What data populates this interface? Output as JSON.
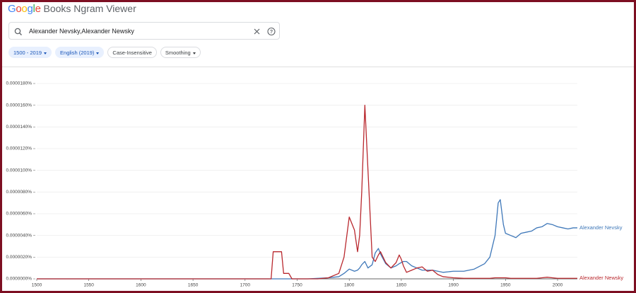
{
  "header": {
    "logo": "Google",
    "title": "Books Ngram Viewer"
  },
  "search": {
    "query": "Alexander Nevsky,Alexander Newsky"
  },
  "chips": [
    "1500 - 2019",
    "English (2019)",
    "Case-Insensitive",
    "Smoothing"
  ],
  "chart_data": {
    "type": "line",
    "x": [
      1500,
      1550,
      1600,
      1650,
      1700,
      1725,
      1727,
      1735,
      1737,
      1742,
      1745,
      1760,
      1770,
      1780,
      1790,
      1795,
      1800,
      1805,
      1808,
      1810,
      1812,
      1815,
      1818,
      1822,
      1825,
      1828,
      1830,
      1835,
      1840,
      1845,
      1848,
      1850,
      1852,
      1855,
      1860,
      1865,
      1870,
      1875,
      1880,
      1885,
      1890,
      1900,
      1910,
      1920,
      1930,
      1935,
      1940,
      1943,
      1945,
      1948,
      1950,
      1955,
      1960,
      1965,
      1970,
      1975,
      1980,
      1985,
      1990,
      1995,
      2000,
      2005,
      2010,
      2015,
      2019
    ],
    "series": [
      {
        "name": "Alexander Nevsky",
        "color": "#3f78b9",
        "values": [
          0,
          0,
          0,
          0,
          0,
          0,
          0,
          0,
          0,
          0,
          0,
          0,
          5e-08,
          1e-07,
          2e-07,
          5e-07,
          9e-07,
          7e-07,
          8e-07,
          1e-06,
          1.3e-06,
          1.6e-06,
          1e-06,
          1.3e-06,
          2.4e-06,
          2.8e-06,
          2.3e-06,
          1.4e-06,
          1e-06,
          1.2e-06,
          1.4e-06,
          1.5e-06,
          1.6e-06,
          1.6e-06,
          1.2e-06,
          1e-06,
          8e-07,
          8e-07,
          8e-07,
          7e-07,
          6e-07,
          7e-07,
          7e-07,
          9e-07,
          1.4e-06,
          2e-06,
          4e-06,
          7e-06,
          7.3e-06,
          5e-06,
          4.2e-06,
          4e-06,
          3.8e-06,
          4.2e-06,
          4.3e-06,
          4.4e-06,
          4.7e-06,
          4.8e-06,
          5.1e-06,
          5e-06,
          4.8e-06,
          4.7e-06,
          4.6e-06,
          4.7e-06,
          4.7e-06
        ]
      },
      {
        "name": "Alexander Newsky",
        "color": "#b9282e",
        "values": [
          0,
          0,
          0,
          0,
          0,
          0,
          2.5e-06,
          2.5e-06,
          5e-07,
          5e-07,
          0,
          0,
          0,
          1e-07,
          5e-07,
          2e-06,
          5.7e-06,
          4.5e-06,
          2.5e-06,
          4e-06,
          8e-06,
          1.6e-05,
          1e-05,
          2e-06,
          1.6e-06,
          2.2e-06,
          2.5e-06,
          1.5e-06,
          1e-06,
          1.5e-06,
          2.2e-06,
          1.8e-06,
          1.2e-06,
          6e-07,
          8e-07,
          1e-06,
          1.1e-06,
          7e-07,
          8e-07,
          4e-07,
          2e-07,
          1e-07,
          5e-08,
          5e-08,
          5e-08,
          5e-08,
          1e-07,
          1e-07,
          1e-07,
          1e-07,
          1e-07,
          5e-08,
          5e-08,
          5e-08,
          5e-08,
          5e-08,
          5e-08,
          1e-07,
          1.5e-07,
          1e-07,
          5e-08,
          5e-08,
          5e-08,
          5e-08,
          5e-08
        ]
      }
    ],
    "xlim": [
      1500,
      2019
    ],
    "xticks": [
      1500,
      1550,
      1600,
      1650,
      1700,
      1750,
      1800,
      1850,
      1900,
      1950,
      2000
    ],
    "ylim": [
      0,
      1.8e-05
    ],
    "yticks": [
      {
        "value": 0,
        "label": "0.0000000%"
      },
      {
        "value": 2e-06,
        "label": "0.0000020%"
      },
      {
        "value": 4e-06,
        "label": "0.0000040%"
      },
      {
        "value": 6e-06,
        "label": "0.0000060%"
      },
      {
        "value": 8e-06,
        "label": "0.0000080%"
      },
      {
        "value": 1e-05,
        "label": "0.0000100%"
      },
      {
        "value": 1.2e-05,
        "label": "0.0000120%"
      },
      {
        "value": 1.4e-05,
        "label": "0.0000140%"
      },
      {
        "value": 1.6e-05,
        "label": "0.0000160%"
      },
      {
        "value": 1.8e-05,
        "label": "0.0000180%"
      }
    ],
    "grid": true
  }
}
